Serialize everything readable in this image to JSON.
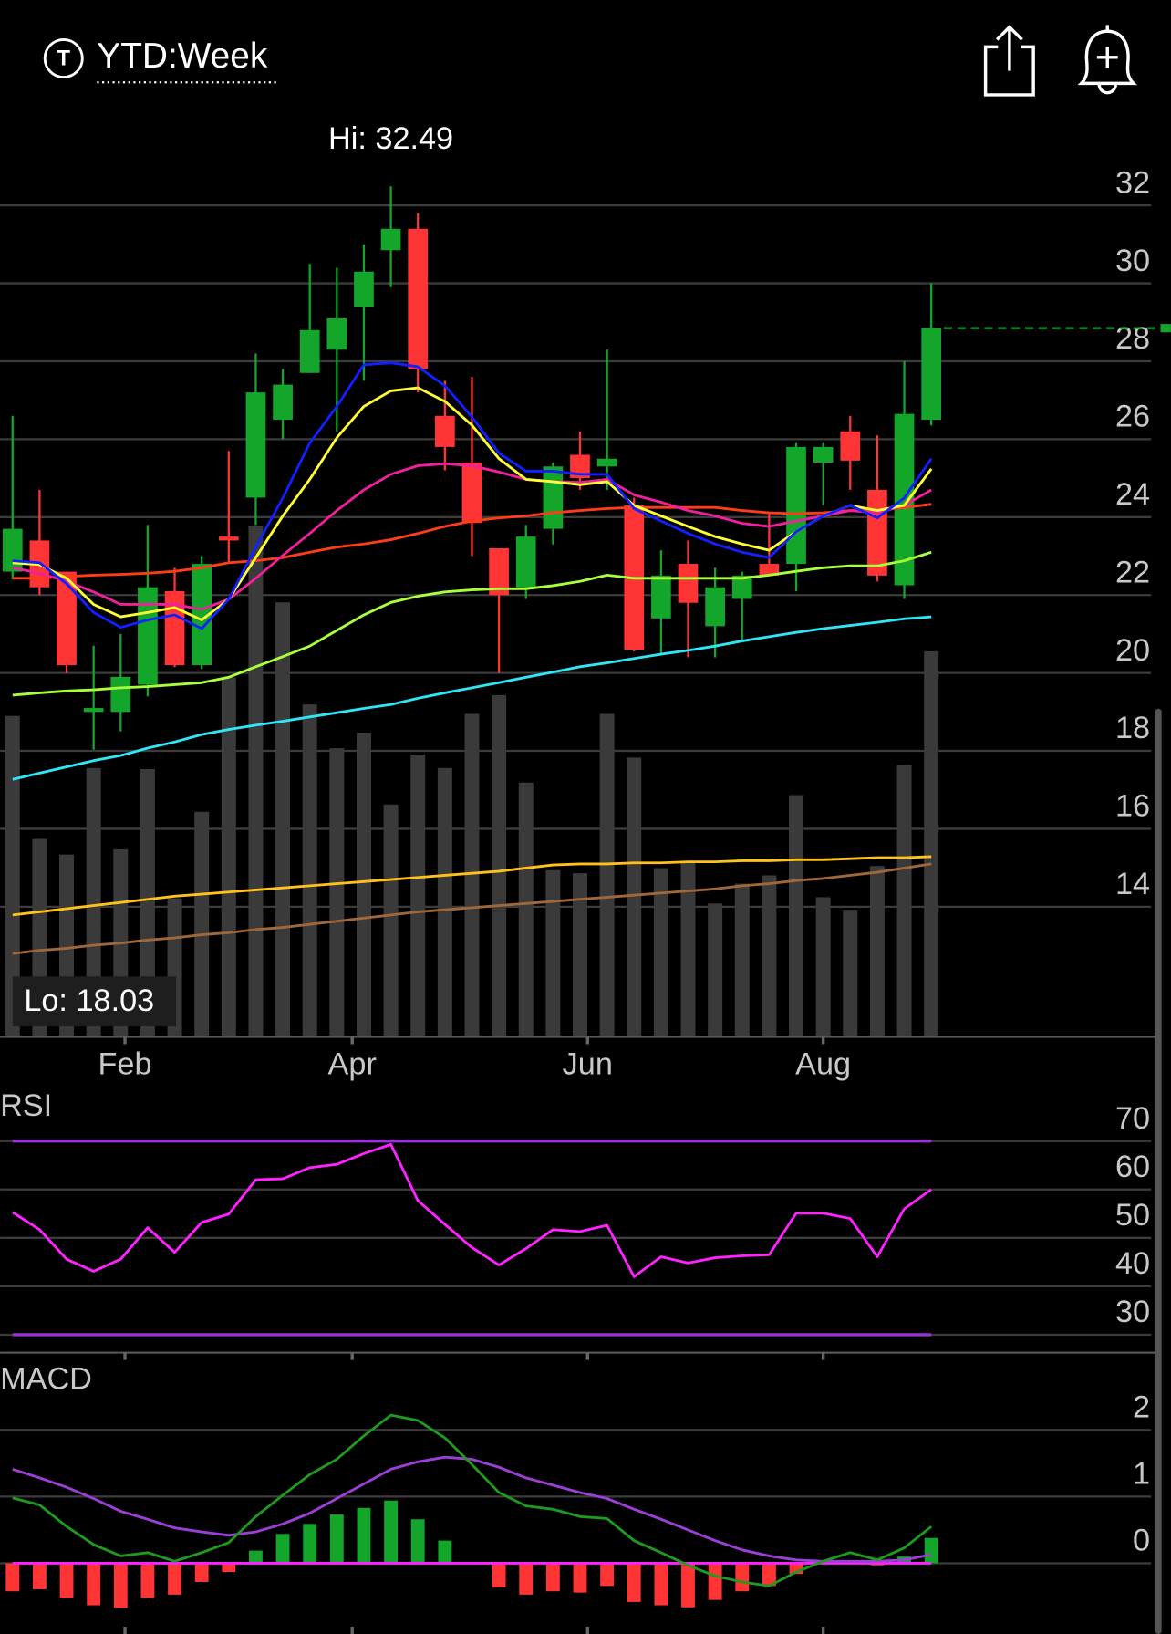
{
  "header": {
    "badge": "T",
    "title": "YTD:Week"
  },
  "chart_data": [
    {
      "type": "candlestick",
      "open": [
        22.6,
        23.4,
        22.6,
        19.0,
        19.0,
        19.7,
        22.1,
        20.2,
        23.5,
        24.5,
        26.5,
        27.7,
        28.3,
        29.4,
        30.85,
        31.4,
        26.6,
        25.4,
        23.2,
        22.2,
        23.7,
        25.6,
        25.3,
        24.3,
        21.4,
        22.8,
        21.2,
        21.9,
        22.8,
        22.8,
        25.4,
        26.2,
        24.7,
        22.25,
        26.5
      ],
      "high": [
        26.6,
        24.7,
        22.6,
        20.7,
        21.0,
        23.8,
        22.7,
        23.0,
        25.7,
        28.2,
        27.8,
        30.5,
        30.4,
        31.0,
        32.49,
        31.8,
        27.5,
        27.6,
        23.2,
        23.8,
        25.4,
        26.2,
        28.3,
        24.5,
        23.15,
        23.4,
        22.7,
        22.6,
        24.1,
        25.9,
        25.9,
        26.6,
        26.1,
        28.0,
        30.0
      ],
      "low": [
        22.4,
        22.0,
        20.0,
        18.03,
        18.5,
        19.4,
        20.15,
        20.1,
        22.8,
        23.8,
        26.0,
        27.7,
        26.2,
        27.5,
        29.9,
        27.2,
        25.2,
        23.0,
        20.0,
        21.9,
        23.3,
        24.7,
        24.7,
        20.55,
        20.5,
        20.4,
        20.4,
        20.8,
        22.5,
        22.1,
        24.3,
        24.7,
        22.35,
        21.9,
        26.35
      ],
      "close": [
        23.7,
        22.2,
        20.2,
        19.1,
        19.9,
        22.2,
        20.2,
        22.8,
        23.4,
        27.2,
        27.4,
        28.8,
        29.1,
        30.3,
        31.4,
        27.8,
        25.8,
        23.85,
        22.0,
        23.5,
        25.3,
        25.0,
        25.5,
        20.6,
        22.5,
        21.8,
        22.2,
        22.5,
        22.5,
        25.8,
        25.8,
        25.45,
        22.5,
        26.65,
        28.85
      ],
      "up_color": "#14a62a",
      "down_color": "#ff3535",
      "volume": [
        308,
        190,
        175,
        258,
        180,
        257,
        133,
        216,
        345,
        490,
        417,
        319,
        277,
        292,
        223,
        271,
        258,
        310,
        328,
        244,
        160,
        157,
        310,
        268,
        162,
        167,
        128,
        147,
        155,
        232,
        134,
        122,
        164,
        261,
        370
      ],
      "volume_color": "#3a3a3a",
      "volume_lim": [
        0,
        845
      ],
      "ylim": [
        10.66,
        33.26
      ],
      "yticks": [
        32,
        30,
        28,
        26,
        24,
        22,
        20,
        18,
        16,
        14
      ],
      "xticks": [
        {
          "value": 4.16,
          "label": "Feb"
        },
        {
          "value": 12.57,
          "label": "Apr"
        },
        {
          "value": 21.28,
          "label": "Jun"
        },
        {
          "value": 30.0,
          "label": "Aug"
        }
      ],
      "grid": true,
      "hi_label": "Hi: 32.49",
      "lo_label": "Lo: 18.03",
      "overlays": [
        {
          "color": "#2ee6f5",
          "values": [
            17.27,
            17.43,
            17.59,
            17.75,
            17.88,
            18.07,
            18.23,
            18.42,
            18.55,
            18.66,
            18.76,
            18.87,
            18.98,
            19.09,
            19.19,
            19.35,
            19.49,
            19.62,
            19.75,
            19.89,
            20.02,
            20.16,
            20.26,
            20.37,
            20.48,
            20.58,
            20.69,
            20.82,
            20.93,
            21.04,
            21.14,
            21.22,
            21.3,
            21.39,
            21.44
          ]
        },
        {
          "color": "#a8ff3c",
          "values": [
            19.43,
            19.49,
            19.54,
            19.57,
            19.62,
            19.65,
            19.7,
            19.75,
            19.89,
            20.16,
            20.42,
            20.69,
            21.09,
            21.49,
            21.81,
            21.97,
            22.08,
            22.13,
            22.16,
            22.16,
            22.24,
            22.35,
            22.51,
            22.43,
            22.43,
            22.43,
            22.43,
            22.43,
            22.51,
            22.61,
            22.7,
            22.75,
            22.75,
            22.88,
            23.1
          ]
        },
        {
          "color": "#ff3c1a",
          "values": [
            22.43,
            22.43,
            22.48,
            22.51,
            22.53,
            22.56,
            22.61,
            22.7,
            22.83,
            22.88,
            22.96,
            23.1,
            23.23,
            23.31,
            23.42,
            23.58,
            23.76,
            23.9,
            23.98,
            24.03,
            24.11,
            24.17,
            24.22,
            24.25,
            24.25,
            24.25,
            24.25,
            24.17,
            24.11,
            24.09,
            24.11,
            24.17,
            24.17,
            24.25,
            24.33
          ]
        },
        {
          "color": "#f0209c",
          "values": [
            22.7,
            22.56,
            22.35,
            22.08,
            21.76,
            21.76,
            21.76,
            21.63,
            21.89,
            22.43,
            23.02,
            23.58,
            24.17,
            24.7,
            25.1,
            25.32,
            25.37,
            25.32,
            25.16,
            24.97,
            24.91,
            24.89,
            24.97,
            24.57,
            24.38,
            24.17,
            24.03,
            23.84,
            23.76,
            23.9,
            24.03,
            24.17,
            24.11,
            24.3,
            24.7
          ]
        },
        {
          "color": "#ffff33",
          "values": [
            22.83,
            22.78,
            22.43,
            21.76,
            21.44,
            21.55,
            21.68,
            21.36,
            21.89,
            22.96,
            24.03,
            24.97,
            26.04,
            26.84,
            27.24,
            27.32,
            26.97,
            26.36,
            25.5,
            24.97,
            24.91,
            24.83,
            24.91,
            24.3,
            24.03,
            23.76,
            23.5,
            23.31,
            23.15,
            23.63,
            24.03,
            24.3,
            24.17,
            24.3,
            25.24
          ]
        },
        {
          "color": "#1020ff",
          "values": [
            22.88,
            22.83,
            22.29,
            21.55,
            21.17,
            21.36,
            21.49,
            21.14,
            21.89,
            23.23,
            24.49,
            25.9,
            26.84,
            27.91,
            27.96,
            27.86,
            27.37,
            26.57,
            25.64,
            25.18,
            25.18,
            25.1,
            25.1,
            24.22,
            23.9,
            23.58,
            23.31,
            23.1,
            22.96,
            23.63,
            24.03,
            24.3,
            23.98,
            24.49,
            25.5
          ]
        }
      ],
      "volume_overlays": [
        {
          "color": "#a0683a",
          "values": [
            80,
            83,
            85,
            88,
            90,
            93,
            95,
            98,
            100,
            103,
            105,
            108,
            111,
            114,
            117,
            120,
            122,
            124,
            126,
            128,
            130,
            132,
            134,
            136,
            138,
            140,
            142,
            145,
            147,
            150,
            152,
            155,
            158,
            162,
            166
          ]
        },
        {
          "color": "#ffc21a",
          "values": [
            117,
            120,
            123,
            126,
            129,
            132,
            135,
            137,
            139,
            141,
            143,
            145,
            147,
            149,
            151,
            153,
            155,
            157,
            159,
            162,
            165,
            166,
            166,
            167,
            167,
            168,
            168,
            169,
            169,
            170,
            170,
            171,
            172,
            172,
            173
          ]
        }
      ],
      "last_price_color": "#14a62a"
    },
    {
      "type": "line",
      "title": "RSI",
      "color": "#ff22ff",
      "values": [
        55.3,
        51.7,
        45.6,
        43.1,
        45.6,
        52.1,
        47.0,
        53.2,
        54.9,
        62.0,
        62.2,
        64.5,
        65.2,
        67.4,
        69.3,
        57.7,
        52.8,
        48.0,
        44.4,
        47.8,
        51.7,
        51.3,
        52.6,
        42.0,
        46.1,
        44.8,
        45.9,
        46.3,
        46.5,
        55.1,
        55.1,
        54.0,
        46.1,
        56.0,
        60.0
      ],
      "ylim": [
        26.3,
        80.75
      ],
      "yticks": [
        70,
        60,
        50,
        40,
        30
      ],
      "levels": [
        70,
        30
      ],
      "level_color": "#9b30d9",
      "grid": true
    },
    {
      "type": "macd",
      "title": "MACD",
      "macd": {
        "color": "#1f9a1f",
        "values": [
          0.98,
          0.875,
          0.55,
          0.28,
          0.11,
          0.16,
          0.03,
          0.16,
          0.31,
          0.7,
          1.02,
          1.33,
          1.56,
          1.91,
          2.22,
          2.14,
          1.88,
          1.48,
          1.06,
          0.86,
          0.81,
          0.7,
          0.67,
          0.34,
          0.16,
          -0.03,
          -0.19,
          -0.28,
          -0.34,
          -0.13,
          0.03,
          0.16,
          0.05,
          0.23,
          0.55
        ]
      },
      "signal": {
        "color": "#9b3fd6",
        "values": [
          1.41,
          1.28,
          1.14,
          0.97,
          0.78,
          0.66,
          0.53,
          0.47,
          0.42,
          0.47,
          0.59,
          0.75,
          0.97,
          1.19,
          1.41,
          1.52,
          1.59,
          1.56,
          1.44,
          1.28,
          1.17,
          1.06,
          0.97,
          0.81,
          0.66,
          0.5,
          0.34,
          0.2,
          0.11,
          0.05,
          0.03,
          0.03,
          0.03,
          0.05,
          0.13
        ]
      },
      "histogram": {
        "up_color": "#14a62a",
        "down_color": "#ff3535",
        "values": [
          -0.42,
          -0.39,
          -0.52,
          -0.63,
          -0.67,
          -0.52,
          -0.47,
          -0.28,
          -0.13,
          0.19,
          0.44,
          0.59,
          0.73,
          0.83,
          0.94,
          0.66,
          0.34,
          0,
          -0.36,
          -0.47,
          -0.42,
          -0.44,
          -0.34,
          -0.58,
          -0.63,
          -0.66,
          -0.55,
          -0.42,
          -0.34,
          -0.16,
          0.02,
          0.03,
          -0.03,
          0.1,
          0.38
        ]
      },
      "zero_line_color": "#ff22ff",
      "ylim": [
        -1.06,
        2.97
      ],
      "yticks": [
        2,
        1,
        0
      ],
      "grid": true
    }
  ]
}
